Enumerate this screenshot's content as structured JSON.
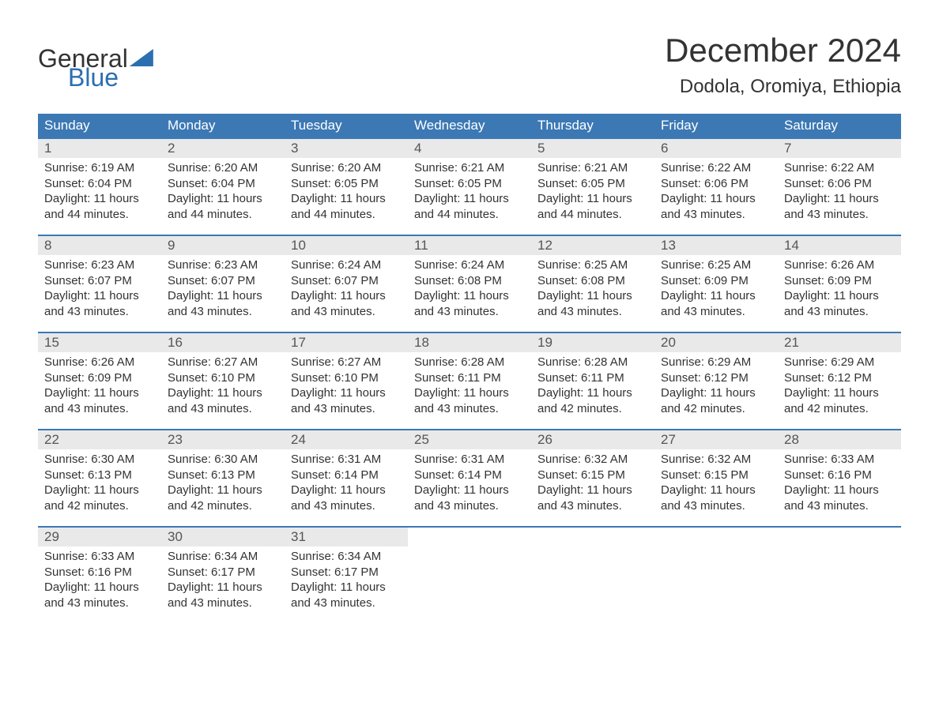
{
  "logo": {
    "text1": "General",
    "text2": "Blue"
  },
  "title": "December 2024",
  "location": "Dodola, Oromiya, Ethiopia",
  "colors": {
    "header_bg": "#3c78b4",
    "header_text": "#ffffff",
    "daynum_bg": "#e9e9e9",
    "border_top": "#3c78b4",
    "body_text": "#333333",
    "logo_blue": "#2b6fb0",
    "page_bg": "#ffffff"
  },
  "day_headers": [
    "Sunday",
    "Monday",
    "Tuesday",
    "Wednesday",
    "Thursday",
    "Friday",
    "Saturday"
  ],
  "weeks": [
    [
      {
        "n": "1",
        "sunrise": "Sunrise: 6:19 AM",
        "sunset": "Sunset: 6:04 PM",
        "d1": "Daylight: 11 hours",
        "d2": "and 44 minutes."
      },
      {
        "n": "2",
        "sunrise": "Sunrise: 6:20 AM",
        "sunset": "Sunset: 6:04 PM",
        "d1": "Daylight: 11 hours",
        "d2": "and 44 minutes."
      },
      {
        "n": "3",
        "sunrise": "Sunrise: 6:20 AM",
        "sunset": "Sunset: 6:05 PM",
        "d1": "Daylight: 11 hours",
        "d2": "and 44 minutes."
      },
      {
        "n": "4",
        "sunrise": "Sunrise: 6:21 AM",
        "sunset": "Sunset: 6:05 PM",
        "d1": "Daylight: 11 hours",
        "d2": "and 44 minutes."
      },
      {
        "n": "5",
        "sunrise": "Sunrise: 6:21 AM",
        "sunset": "Sunset: 6:05 PM",
        "d1": "Daylight: 11 hours",
        "d2": "and 44 minutes."
      },
      {
        "n": "6",
        "sunrise": "Sunrise: 6:22 AM",
        "sunset": "Sunset: 6:06 PM",
        "d1": "Daylight: 11 hours",
        "d2": "and 43 minutes."
      },
      {
        "n": "7",
        "sunrise": "Sunrise: 6:22 AM",
        "sunset": "Sunset: 6:06 PM",
        "d1": "Daylight: 11 hours",
        "d2": "and 43 minutes."
      }
    ],
    [
      {
        "n": "8",
        "sunrise": "Sunrise: 6:23 AM",
        "sunset": "Sunset: 6:07 PM",
        "d1": "Daylight: 11 hours",
        "d2": "and 43 minutes."
      },
      {
        "n": "9",
        "sunrise": "Sunrise: 6:23 AM",
        "sunset": "Sunset: 6:07 PM",
        "d1": "Daylight: 11 hours",
        "d2": "and 43 minutes."
      },
      {
        "n": "10",
        "sunrise": "Sunrise: 6:24 AM",
        "sunset": "Sunset: 6:07 PM",
        "d1": "Daylight: 11 hours",
        "d2": "and 43 minutes."
      },
      {
        "n": "11",
        "sunrise": "Sunrise: 6:24 AM",
        "sunset": "Sunset: 6:08 PM",
        "d1": "Daylight: 11 hours",
        "d2": "and 43 minutes."
      },
      {
        "n": "12",
        "sunrise": "Sunrise: 6:25 AM",
        "sunset": "Sunset: 6:08 PM",
        "d1": "Daylight: 11 hours",
        "d2": "and 43 minutes."
      },
      {
        "n": "13",
        "sunrise": "Sunrise: 6:25 AM",
        "sunset": "Sunset: 6:09 PM",
        "d1": "Daylight: 11 hours",
        "d2": "and 43 minutes."
      },
      {
        "n": "14",
        "sunrise": "Sunrise: 6:26 AM",
        "sunset": "Sunset: 6:09 PM",
        "d1": "Daylight: 11 hours",
        "d2": "and 43 minutes."
      }
    ],
    [
      {
        "n": "15",
        "sunrise": "Sunrise: 6:26 AM",
        "sunset": "Sunset: 6:09 PM",
        "d1": "Daylight: 11 hours",
        "d2": "and 43 minutes."
      },
      {
        "n": "16",
        "sunrise": "Sunrise: 6:27 AM",
        "sunset": "Sunset: 6:10 PM",
        "d1": "Daylight: 11 hours",
        "d2": "and 43 minutes."
      },
      {
        "n": "17",
        "sunrise": "Sunrise: 6:27 AM",
        "sunset": "Sunset: 6:10 PM",
        "d1": "Daylight: 11 hours",
        "d2": "and 43 minutes."
      },
      {
        "n": "18",
        "sunrise": "Sunrise: 6:28 AM",
        "sunset": "Sunset: 6:11 PM",
        "d1": "Daylight: 11 hours",
        "d2": "and 43 minutes."
      },
      {
        "n": "19",
        "sunrise": "Sunrise: 6:28 AM",
        "sunset": "Sunset: 6:11 PM",
        "d1": "Daylight: 11 hours",
        "d2": "and 42 minutes."
      },
      {
        "n": "20",
        "sunrise": "Sunrise: 6:29 AM",
        "sunset": "Sunset: 6:12 PM",
        "d1": "Daylight: 11 hours",
        "d2": "and 42 minutes."
      },
      {
        "n": "21",
        "sunrise": "Sunrise: 6:29 AM",
        "sunset": "Sunset: 6:12 PM",
        "d1": "Daylight: 11 hours",
        "d2": "and 42 minutes."
      }
    ],
    [
      {
        "n": "22",
        "sunrise": "Sunrise: 6:30 AM",
        "sunset": "Sunset: 6:13 PM",
        "d1": "Daylight: 11 hours",
        "d2": "and 42 minutes."
      },
      {
        "n": "23",
        "sunrise": "Sunrise: 6:30 AM",
        "sunset": "Sunset: 6:13 PM",
        "d1": "Daylight: 11 hours",
        "d2": "and 42 minutes."
      },
      {
        "n": "24",
        "sunrise": "Sunrise: 6:31 AM",
        "sunset": "Sunset: 6:14 PM",
        "d1": "Daylight: 11 hours",
        "d2": "and 43 minutes."
      },
      {
        "n": "25",
        "sunrise": "Sunrise: 6:31 AM",
        "sunset": "Sunset: 6:14 PM",
        "d1": "Daylight: 11 hours",
        "d2": "and 43 minutes."
      },
      {
        "n": "26",
        "sunrise": "Sunrise: 6:32 AM",
        "sunset": "Sunset: 6:15 PM",
        "d1": "Daylight: 11 hours",
        "d2": "and 43 minutes."
      },
      {
        "n": "27",
        "sunrise": "Sunrise: 6:32 AM",
        "sunset": "Sunset: 6:15 PM",
        "d1": "Daylight: 11 hours",
        "d2": "and 43 minutes."
      },
      {
        "n": "28",
        "sunrise": "Sunrise: 6:33 AM",
        "sunset": "Sunset: 6:16 PM",
        "d1": "Daylight: 11 hours",
        "d2": "and 43 minutes."
      }
    ],
    [
      {
        "n": "29",
        "sunrise": "Sunrise: 6:33 AM",
        "sunset": "Sunset: 6:16 PM",
        "d1": "Daylight: 11 hours",
        "d2": "and 43 minutes."
      },
      {
        "n": "30",
        "sunrise": "Sunrise: 6:34 AM",
        "sunset": "Sunset: 6:17 PM",
        "d1": "Daylight: 11 hours",
        "d2": "and 43 minutes."
      },
      {
        "n": "31",
        "sunrise": "Sunrise: 6:34 AM",
        "sunset": "Sunset: 6:17 PM",
        "d1": "Daylight: 11 hours",
        "d2": "and 43 minutes."
      },
      null,
      null,
      null,
      null
    ]
  ]
}
